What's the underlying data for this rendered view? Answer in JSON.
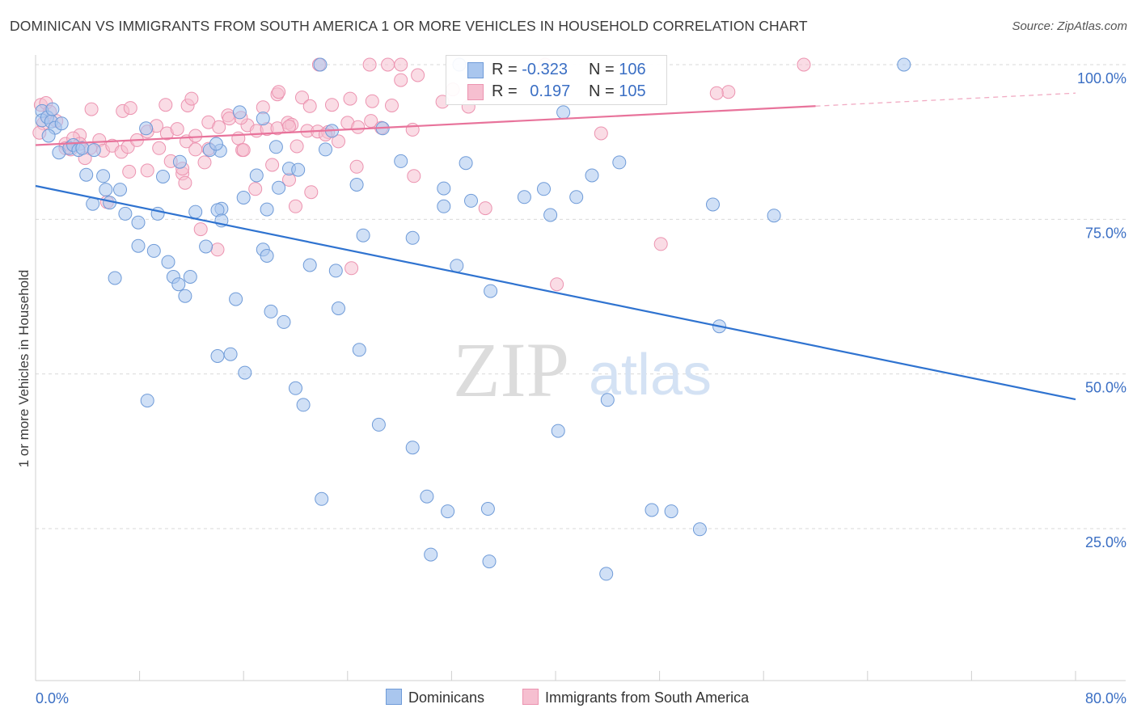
{
  "title": "DOMINICAN VS IMMIGRANTS FROM SOUTH AMERICA 1 OR MORE VEHICLES IN HOUSEHOLD CORRELATION CHART",
  "source": "Source: ZipAtlas.com",
  "watermark": {
    "zip": "ZIP",
    "atlas": "atlas"
  },
  "legend_top": [
    {
      "r_label": "R =",
      "r_value": "-0.323",
      "n_label": "N =",
      "n_value": "106"
    },
    {
      "r_label": "R =",
      "r_value": "0.197",
      "n_label": "N =",
      "n_value": "105"
    }
  ],
  "colors": {
    "blue_fill": "#a9c6ee",
    "blue_stroke": "#6f9bd8",
    "blue_line": "#2f73d0",
    "pink_fill": "#f6bfd0",
    "pink_stroke": "#ec93b0",
    "pink_line": "#e8739b",
    "tick_text": "#3b6fc4",
    "grid": "#d9d9d9"
  },
  "chart_data": {
    "type": "scatter",
    "ylabel": "1 or more Vehicles in Household",
    "xlim": [
      0,
      80
    ],
    "ylim": [
      0,
      105
    ],
    "x_ticks": [
      "0.0%",
      "80.0%"
    ],
    "y_ticks": [
      {
        "value": 25,
        "label": "25.0%"
      },
      {
        "value": 50,
        "label": "50.0%"
      },
      {
        "value": 75,
        "label": "75.0%"
      },
      {
        "value": 100,
        "label": "100.0%"
      }
    ],
    "grid": "horizontal dashed",
    "series": [
      {
        "name": "Dominicans",
        "color": "blue",
        "trend": {
          "x": [
            0,
            80
          ],
          "y": [
            80.4,
            45.9
          ]
        },
        "points": [
          [
            0.5,
            92.5
          ],
          [
            0.5,
            91
          ],
          [
            0.9,
            91.5
          ],
          [
            1.2,
            90.8
          ],
          [
            1.5,
            89.8
          ],
          [
            2.0,
            90.5
          ],
          [
            1.0,
            88.5
          ],
          [
            1.8,
            85.8
          ],
          [
            2.6,
            86.5
          ],
          [
            2.9,
            87
          ],
          [
            3.3,
            86.2
          ],
          [
            3.6,
            86.5
          ],
          [
            4.5,
            86.2
          ],
          [
            3.9,
            82.2
          ],
          [
            5.2,
            82
          ],
          [
            5.4,
            79.8
          ],
          [
            6.5,
            79.8
          ],
          [
            4.4,
            77.5
          ],
          [
            5.7,
            77.7
          ],
          [
            6.9,
            75.9
          ],
          [
            7.9,
            74.5
          ],
          [
            9.4,
            75.9
          ],
          [
            12.3,
            76.2
          ],
          [
            14.3,
            76.7
          ],
          [
            14.0,
            76.5
          ],
          [
            14.2,
            86.1
          ],
          [
            13.4,
            86.2
          ],
          [
            16.0,
            78.5
          ],
          [
            17.0,
            82.1
          ],
          [
            17.8,
            76.6
          ],
          [
            18.7,
            80.1
          ],
          [
            18.5,
            86.7
          ],
          [
            19.5,
            83.2
          ],
          [
            20.2,
            83
          ],
          [
            22.3,
            86.3
          ],
          [
            22.8,
            89.3
          ],
          [
            24.7,
            80.6
          ],
          [
            25.2,
            72.4
          ],
          [
            26.7,
            89.7
          ],
          [
            28.1,
            84.4
          ],
          [
            29.0,
            72.0
          ],
          [
            31.4,
            77.1
          ],
          [
            31.4,
            80.0
          ],
          [
            32.4,
            67.5
          ],
          [
            33.1,
            84.1
          ],
          [
            33.5,
            78.0
          ],
          [
            35.0,
            63.4
          ],
          [
            37.6,
            78.6
          ],
          [
            39.1,
            79.9
          ],
          [
            39.6,
            75.7
          ],
          [
            40.6,
            92.3
          ],
          [
            41.6,
            78.6
          ],
          [
            42.8,
            82.1
          ],
          [
            44.9,
            84.2
          ],
          [
            52.1,
            77.4
          ],
          [
            56.8,
            75.6
          ],
          [
            66.8,
            100
          ],
          [
            21.9,
            100
          ],
          [
            32.6,
            100
          ],
          [
            7.9,
            70.7
          ],
          [
            9.1,
            69.9
          ],
          [
            10.2,
            68.1
          ],
          [
            10.6,
            65.7
          ],
          [
            11.0,
            64.5
          ],
          [
            11.5,
            62.6
          ],
          [
            11.9,
            65.7
          ],
          [
            6.1,
            65.5
          ],
          [
            13.1,
            70.6
          ],
          [
            14.3,
            74.8
          ],
          [
            17.5,
            70.1
          ],
          [
            17.8,
            69.1
          ],
          [
            21.1,
            67.6
          ],
          [
            23.1,
            66.7
          ],
          [
            15.4,
            62.1
          ],
          [
            18.1,
            60.1
          ],
          [
            19.1,
            58.4
          ],
          [
            23.3,
            60.6
          ],
          [
            24.9,
            53.9
          ],
          [
            15.0,
            53.2
          ],
          [
            14.0,
            52.9
          ],
          [
            16.1,
            50.2
          ],
          [
            20.0,
            47.7
          ],
          [
            20.6,
            45.0
          ],
          [
            8.6,
            45.7
          ],
          [
            44.0,
            45.8
          ],
          [
            26.4,
            41.8
          ],
          [
            29.0,
            38.1
          ],
          [
            40.2,
            40.8
          ],
          [
            22.0,
            29.8
          ],
          [
            30.1,
            30.2
          ],
          [
            31.7,
            27.8
          ],
          [
            34.8,
            28.2
          ],
          [
            52.6,
            57.7
          ],
          [
            47.4,
            28.0
          ],
          [
            48.9,
            27.8
          ],
          [
            51.1,
            24.9
          ],
          [
            30.4,
            20.8
          ],
          [
            34.9,
            19.7
          ],
          [
            43.9,
            17.7
          ],
          [
            8.5,
            89.7
          ],
          [
            11.1,
            84.3
          ],
          [
            13.9,
            87.2
          ],
          [
            15.7,
            92.3
          ],
          [
            17.5,
            91.3
          ],
          [
            9.8,
            81.9
          ],
          [
            1.3,
            92.8
          ]
        ]
      },
      {
        "name": "Immigrants from South America",
        "color": "pink",
        "trend": {
          "x": [
            0,
            60
          ],
          "y": [
            87.0,
            93.3
          ],
          "dashed_to": {
            "x": 80,
            "y": 95.4
          }
        },
        "points": [
          [
            0.4,
            93.5
          ],
          [
            0.8,
            93.8
          ],
          [
            1.1,
            92.4
          ],
          [
            0.6,
            90.5
          ],
          [
            1.6,
            90.9
          ],
          [
            2.3,
            87.2
          ],
          [
            2.7,
            86.3
          ],
          [
            3.4,
            88.6
          ],
          [
            3.8,
            84.9
          ],
          [
            4.2,
            86.5
          ],
          [
            4.9,
            87.8
          ],
          [
            5.2,
            86.1
          ],
          [
            5.9,
            86.9
          ],
          [
            6.6,
            85.9
          ],
          [
            7.1,
            86.7
          ],
          [
            7.8,
            87.8
          ],
          [
            8.6,
            89.2
          ],
          [
            9.3,
            90.1
          ],
          [
            10.1,
            88.9
          ],
          [
            10.9,
            89.6
          ],
          [
            11.6,
            87.6
          ],
          [
            12.3,
            88.5
          ],
          [
            13.3,
            90.7
          ],
          [
            14.1,
            89.9
          ],
          [
            14.8,
            91.8
          ],
          [
            15.6,
            88.1
          ],
          [
            16.3,
            90.2
          ],
          [
            17.0,
            89.3
          ],
          [
            17.8,
            89.6
          ],
          [
            18.6,
            89.7
          ],
          [
            19.4,
            90.6
          ],
          [
            20.1,
            86.8
          ],
          [
            20.9,
            89.3
          ],
          [
            21.7,
            89.2
          ],
          [
            22.5,
            89.1
          ],
          [
            23.3,
            87.6
          ],
          [
            24.0,
            90.6
          ],
          [
            24.8,
            89.9
          ],
          [
            25.8,
            90.9
          ],
          [
            26.6,
            89.8
          ],
          [
            4.3,
            92.8
          ],
          [
            6.7,
            92.5
          ],
          [
            7.3,
            93.0
          ],
          [
            10.0,
            93.5
          ],
          [
            11.7,
            93.4
          ],
          [
            12.0,
            94.5
          ],
          [
            14.9,
            91.3
          ],
          [
            15.8,
            91.4
          ],
          [
            18.6,
            95.2
          ],
          [
            17.5,
            93.1
          ],
          [
            18.7,
            95.6
          ],
          [
            19.7,
            90.3
          ],
          [
            20.5,
            94.7
          ],
          [
            21.1,
            93.3
          ],
          [
            22.8,
            93.5
          ],
          [
            24.2,
            94.5
          ],
          [
            25.9,
            94.1
          ],
          [
            27.4,
            93.4
          ],
          [
            28.1,
            97.5
          ],
          [
            29.4,
            98.3
          ],
          [
            32.1,
            96.0
          ],
          [
            21.8,
            100
          ],
          [
            25.7,
            100
          ],
          [
            27.1,
            100
          ],
          [
            28.1,
            100
          ],
          [
            31.3,
            94.0
          ],
          [
            33.3,
            93.2
          ],
          [
            39.2,
            100
          ],
          [
            53.3,
            95.6
          ],
          [
            52.4,
            95.4
          ],
          [
            59.1,
            100
          ],
          [
            43.5,
            88.9
          ],
          [
            7.2,
            82.7
          ],
          [
            8.6,
            82.9
          ],
          [
            10.4,
            84.4
          ],
          [
            11.3,
            82.4
          ],
          [
            11.5,
            80.9
          ],
          [
            12.3,
            86.3
          ],
          [
            13.0,
            84.2
          ],
          [
            13.3,
            86.4
          ],
          [
            15.9,
            86.2
          ],
          [
            16.0,
            86.2
          ],
          [
            18.2,
            83.8
          ],
          [
            19.5,
            81.4
          ],
          [
            21.2,
            79.4
          ],
          [
            24.7,
            83.5
          ],
          [
            29.1,
            82.0
          ],
          [
            5.5,
            77.8
          ],
          [
            12.7,
            73.4
          ],
          [
            14.0,
            70.1
          ],
          [
            20.0,
            77.1
          ],
          [
            34.6,
            76.8
          ],
          [
            24.3,
            67.1
          ],
          [
            40.1,
            64.5
          ],
          [
            48.1,
            71.0
          ],
          [
            2.3,
            86.5
          ],
          [
            2.9,
            88.1
          ],
          [
            3.4,
            87.2
          ],
          [
            19.5,
            90.0
          ],
          [
            22.3,
            88.7
          ],
          [
            29.0,
            89.5
          ],
          [
            9.5,
            86.5
          ],
          [
            11.3,
            83.2
          ],
          [
            16.9,
            79.9
          ],
          [
            0.3,
            89.0
          ]
        ]
      }
    ]
  },
  "legend_bottom": [
    {
      "label": "Dominicans",
      "color": "blue"
    },
    {
      "label": "Immigrants from South America",
      "color": "pink"
    }
  ]
}
